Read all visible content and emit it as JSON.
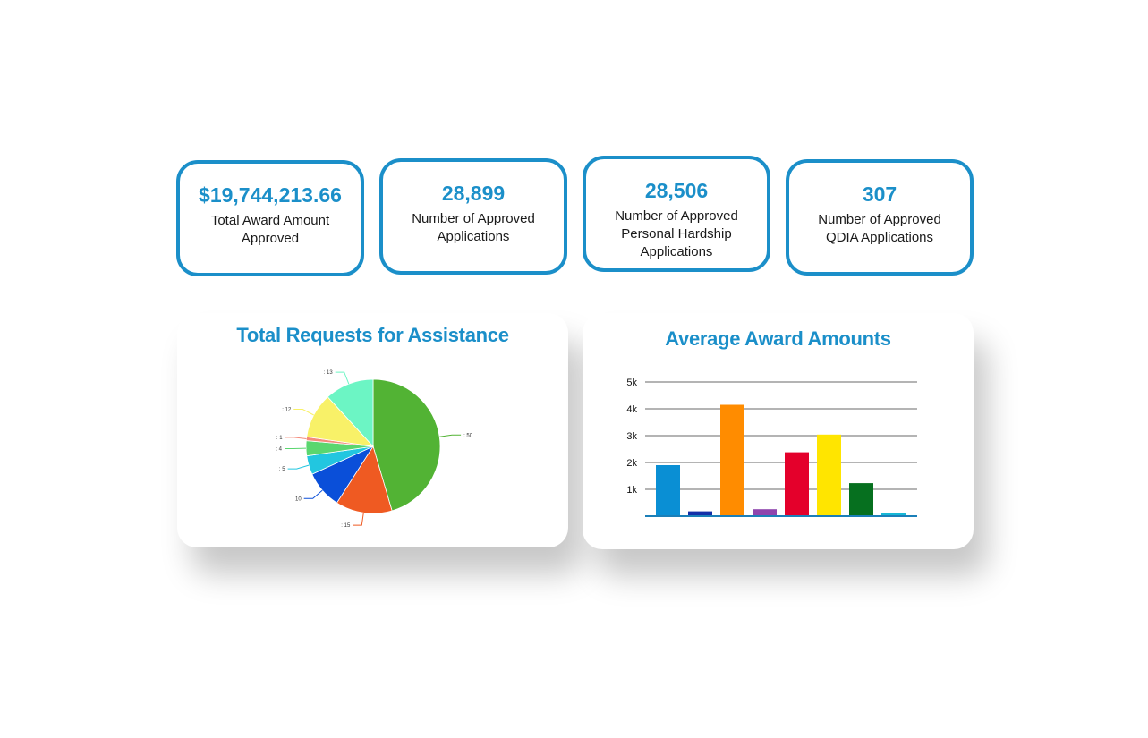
{
  "stats": [
    {
      "value": "$19,744,213.66",
      "label_lines": [
        "Total Award Amount",
        "Approved"
      ]
    },
    {
      "value": "28,899",
      "label_lines": [
        "Number of Approved",
        "Applications"
      ]
    },
    {
      "value": "28,506",
      "label_lines": [
        "Number of Approved",
        "Personal Hardship",
        "Applications"
      ]
    },
    {
      "value": "307",
      "label_lines": [
        "Number of Approved",
        "QDIA Applications"
      ]
    }
  ],
  "colors": {
    "accent": "#1b8fc9"
  },
  "chart_data": [
    {
      "type": "pie",
      "title": "Total Requests for Assistance",
      "slices": [
        {
          "label": ": 50",
          "value": 50,
          "color": "#52b334"
        },
        {
          "label": ": 15",
          "value": 15,
          "color": "#ef5a22"
        },
        {
          "label": ": 10",
          "value": 10,
          "color": "#0a4fd9"
        },
        {
          "label": ": 5",
          "value": 5,
          "color": "#22c6e0"
        },
        {
          "label": ": 4",
          "value": 4,
          "color": "#5ad66f"
        },
        {
          "label": ": 1",
          "value": 1,
          "color": "#f48a7a"
        },
        {
          "label": ": 12",
          "value": 12,
          "color": "#f8f168"
        },
        {
          "label": ": 13",
          "value": 13,
          "color": "#6cf5c4"
        }
      ]
    },
    {
      "type": "bar",
      "title": "Average Award Amounts",
      "categories": [
        "",
        "",
        "",
        "",
        "",
        "",
        "",
        ""
      ],
      "values": [
        1900,
        180,
        4150,
        260,
        2380,
        3040,
        1230,
        130
      ],
      "colors": [
        "#0a8fd4",
        "#1330a8",
        "#ff8c00",
        "#8e44ad",
        "#e4002b",
        "#ffe500",
        "#06701f",
        "#17b8d6"
      ],
      "yticks": [
        1000,
        2000,
        3000,
        4000,
        5000
      ],
      "ytick_labels": [
        "1k",
        "2k",
        "3k",
        "4k",
        "5k"
      ],
      "ylim": [
        0,
        5000
      ]
    }
  ]
}
